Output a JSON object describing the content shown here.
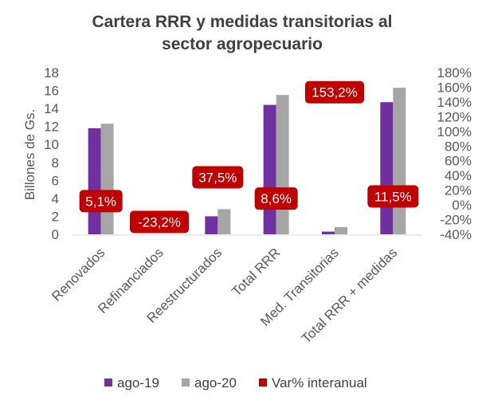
{
  "chart_data": {
    "type": "bar",
    "title_lines": [
      "Cartera RRR y medidas  transitorias al",
      "sector agropecuario"
    ],
    "ylabel": "Billones de Gs.",
    "ylim": [
      0,
      18
    ],
    "yticks": [
      "0",
      "2",
      "4",
      "6",
      "8",
      "10",
      "12",
      "14",
      "16",
      "18"
    ],
    "y2lim": [
      -40,
      180
    ],
    "y2ticks": [
      "-40%",
      "-20%",
      "0%",
      "20%",
      "40%",
      "60%",
      "80%",
      "100%",
      "120%",
      "140%",
      "160%",
      "180%"
    ],
    "categories": [
      "Renovados",
      "Refinanciados",
      "Reestructurados",
      "Total RRR",
      "Med. Transitorias",
      "Total RRR + medidas"
    ],
    "series": [
      {
        "name": "ago-19",
        "color": "#7030A0",
        "values": [
          11.8,
          0.0,
          2.0,
          14.4,
          0.3,
          14.7
        ]
      },
      {
        "name": "ago-20",
        "color": "#A6A6A6",
        "values": [
          12.3,
          0.0,
          2.8,
          15.5,
          0.8,
          16.3
        ]
      }
    ],
    "variation": {
      "name": "Var% interanual",
      "color": "#C00000",
      "values": [
        5.1,
        -23.2,
        37.5,
        8.6,
        153.2,
        11.5
      ],
      "labels": [
        "5,1%",
        "-23,2%",
        "37,5%",
        "8,6%",
        "153,2%",
        "11,5%"
      ]
    },
    "legend_position": "bottom",
    "grid": false
  }
}
